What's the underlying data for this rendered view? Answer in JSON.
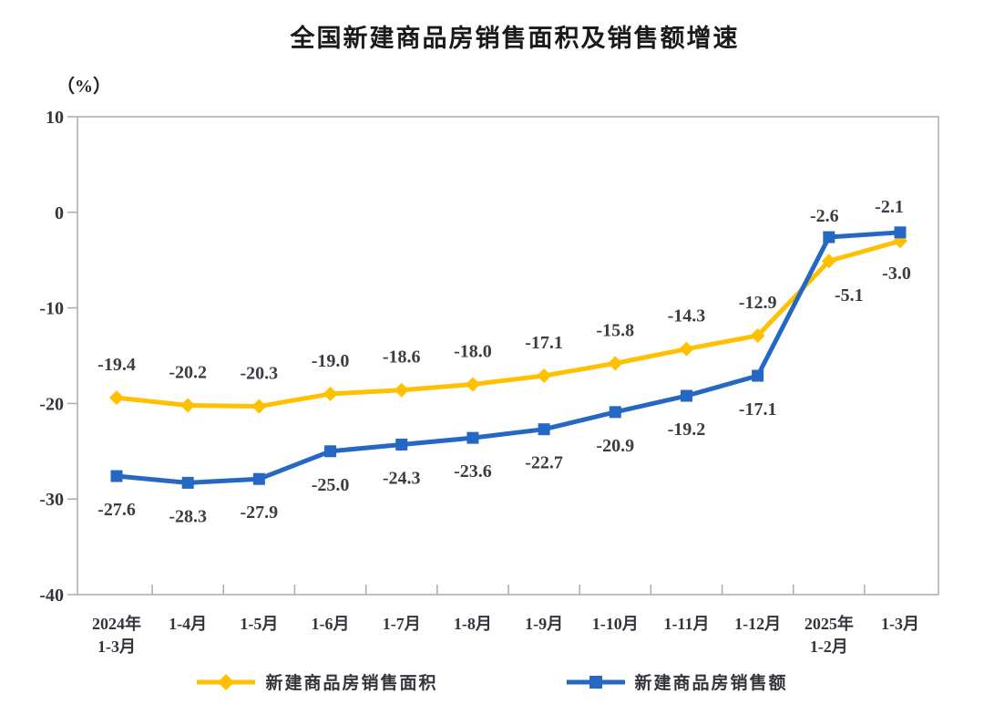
{
  "page": {
    "title": "全国新建商品房销售面积及销售额增速",
    "unit_label": "（%）"
  },
  "chart_data": {
    "type": "line",
    "title": "全国新建商品房销售面积及销售额增速",
    "unit": "（%）",
    "categories": [
      "2024年\n1-3月",
      "1-4月",
      "1-5月",
      "1-6月",
      "1-7月",
      "1-8月",
      "1-9月",
      "1-10月",
      "1-11月",
      "1-12月",
      "2025年\n1-2月",
      "1-3月"
    ],
    "series": [
      {
        "name": "新建商品房销售面积",
        "color": "#FFC000",
        "marker": "diamond",
        "values": [
          -19.4,
          -20.2,
          -20.3,
          -19.0,
          -18.6,
          -18.0,
          -17.1,
          -15.8,
          -14.3,
          -12.9,
          -5.1,
          -3.0
        ],
        "label_dy": -30,
        "label_offsets": {
          "10": [
            22,
            44
          ],
          "11": [
            -4,
            42
          ]
        }
      },
      {
        "name": "新建商品房销售额",
        "color": "#2568C3",
        "marker": "square",
        "values": [
          -27.6,
          -28.3,
          -27.9,
          -25.0,
          -24.3,
          -23.6,
          -22.7,
          -20.9,
          -19.2,
          -17.1,
          -2.6,
          -2.1
        ],
        "label_dy": 43,
        "label_offsets": {
          "10": [
            -5,
            -17
          ],
          "11": [
            -12,
            -22
          ]
        }
      }
    ],
    "ylim": [
      -40,
      10
    ],
    "yticks": [
      10,
      0,
      -10,
      -20,
      -30,
      -40
    ],
    "grid": false,
    "legend_position": "bottom",
    "axis_color": "#ababab",
    "xlabel": "",
    "ylabel": "（%）"
  }
}
